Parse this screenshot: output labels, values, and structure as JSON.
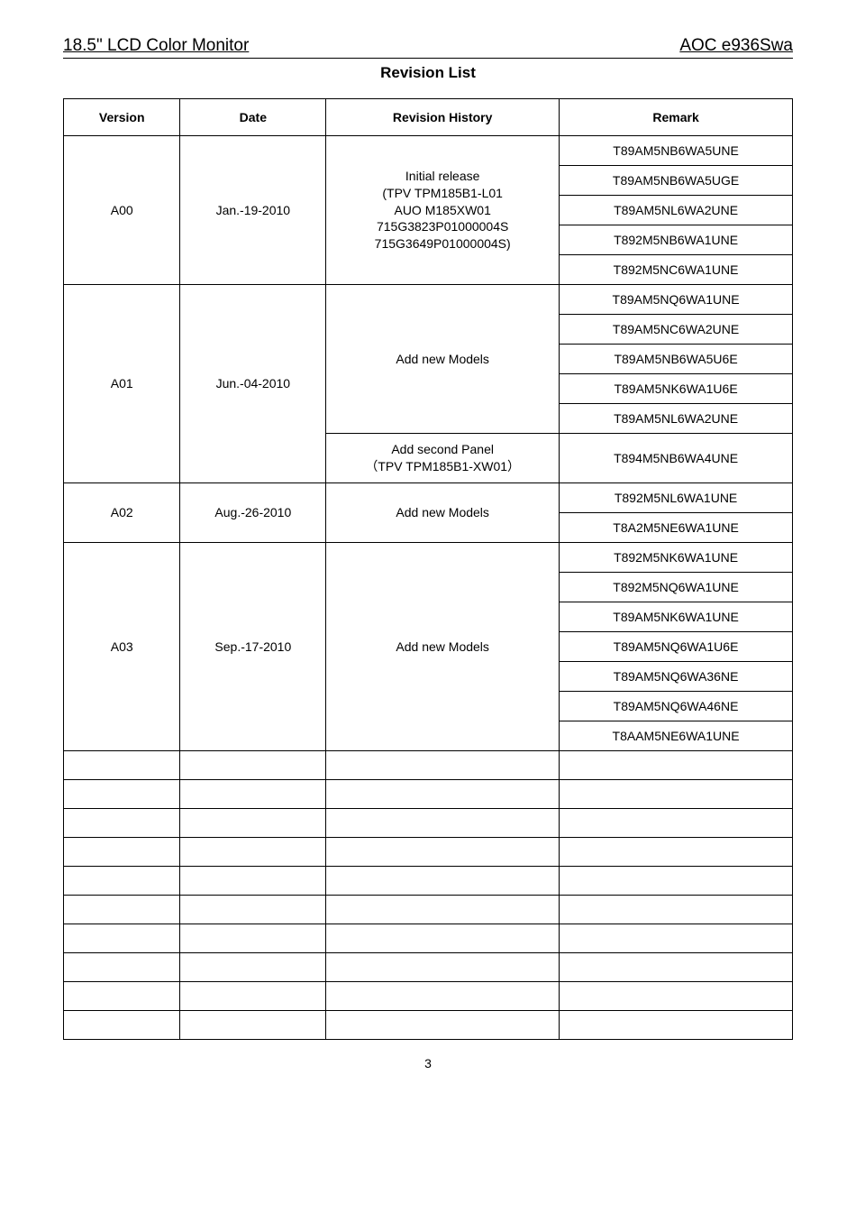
{
  "header": {
    "left": "18.5\" LCD Color Monitor",
    "right": "AOC e936Swa"
  },
  "title": "Revision List",
  "columns": {
    "version": "Version",
    "date": "Date",
    "history": "Revision History",
    "remark": "Remark"
  },
  "rows": {
    "a00": {
      "version": "A00",
      "date": "Jan.-19-2010",
      "history": "Initial release\n(TPV TPM185B1-L01\nAUO M185XW01\n715G3823P01000004S\n715G3649P01000004S)",
      "remarks": [
        "T89AM5NB6WA5UNE",
        "T89AM5NB6WA5UGE",
        "T89AM5NL6WA2UNE",
        "T892M5NB6WA1UNE",
        "T892M5NC6WA1UNE"
      ]
    },
    "a01": {
      "version": "A01",
      "date": "Jun.-04-2010",
      "history1": "Add new Models",
      "remarks1": [
        "T89AM5NQ6WA1UNE",
        "T89AM5NC6WA2UNE",
        "T89AM5NB6WA5U6E",
        "T89AM5NK6WA1U6E",
        "T89AM5NL6WA2UNE"
      ],
      "history2": "Add second Panel\n（TPV TPM185B1-XW01）",
      "remarks2": [
        "T894M5NB6WA4UNE"
      ]
    },
    "a02": {
      "version": "A02",
      "date": "Aug.-26-2010",
      "history": "Add new Models",
      "remarks": [
        "T892M5NL6WA1UNE",
        "T8A2M5NE6WA1UNE"
      ]
    },
    "a03": {
      "version": "A03",
      "date": "Sep.-17-2010",
      "history": "Add new Models",
      "remarks": [
        "T892M5NK6WA1UNE",
        "T892M5NQ6WA1UNE",
        "T89AM5NK6WA1UNE",
        "T89AM5NQ6WA1U6E",
        "T89AM5NQ6WA36NE",
        "T89AM5NQ6WA46NE",
        "T8AAM5NE6WA1UNE"
      ]
    }
  },
  "emptyRowCount": 10,
  "pageNumber": "3"
}
